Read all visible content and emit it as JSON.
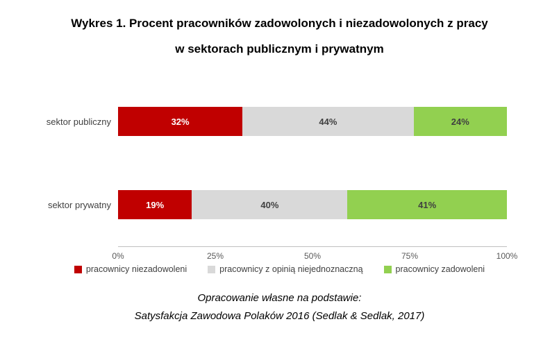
{
  "title": {
    "line1": "Wykres 1. Procent pracowników zadowolonych i niezadowolonych z pracy",
    "line2": "w sektorach publicznym i prywatnym"
  },
  "chart_data": {
    "type": "bar",
    "orientation": "horizontal",
    "stacked": true,
    "title": "Wykres 1. Procent pracowników zadowolonych i niezadowolonych z pracy w sektorach publicznym i prywatnym",
    "categories": [
      "sektor publiczny",
      "sektor prywatny"
    ],
    "series": [
      {
        "name": "pracownicy niezadowoleni",
        "color": "#C00000",
        "label_color": "#FFFFFF",
        "values": [
          32,
          19
        ]
      },
      {
        "name": "pracownicy z opinią niejednoznaczną",
        "color": "#D9D9D9",
        "label_color": "#404040",
        "values": [
          44,
          40
        ]
      },
      {
        "name": "pracownicy zadowoleni",
        "color": "#92D050",
        "label_color": "#404040",
        "values": [
          24,
          41
        ]
      }
    ],
    "x_ticks": [
      "0%",
      "25%",
      "50%",
      "75%",
      "100%"
    ],
    "xlim": [
      0,
      100
    ],
    "grid": false,
    "legend_position": "bottom",
    "value_suffix": "%"
  },
  "footer": {
    "line1": "Opracowanie własne na podstawie:",
    "line2": "Satysfakcja Zawodowa Polaków 2016 (Sedlak & Sedlak, 2017)"
  }
}
